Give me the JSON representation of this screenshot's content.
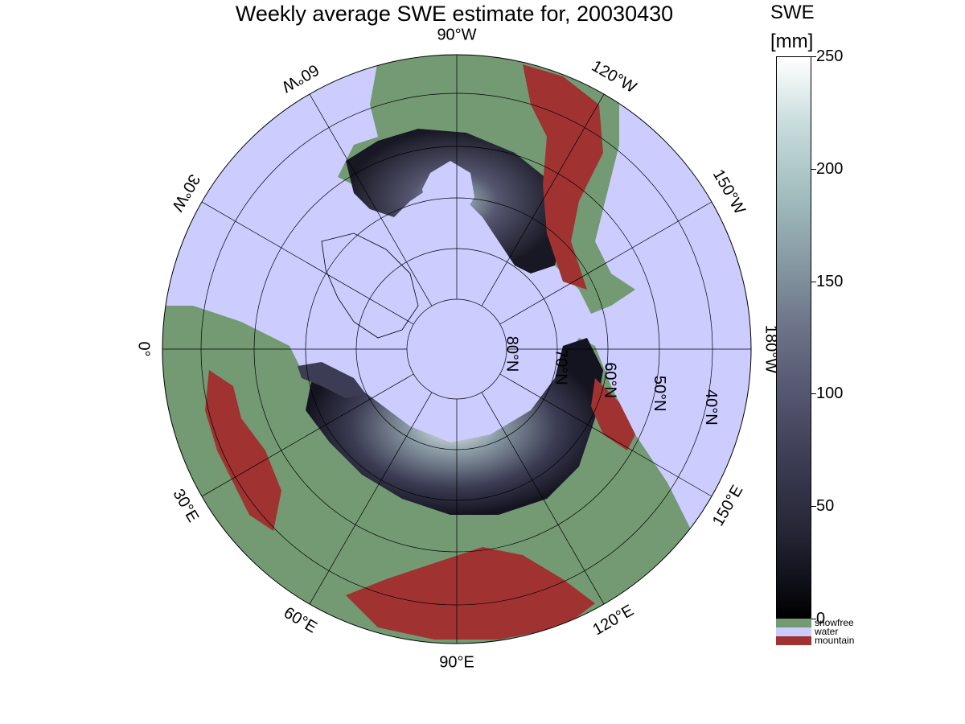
{
  "title": "Weekly average SWE estimate for, 20030430",
  "colorbar": {
    "title": "SWE",
    "unit": "[mm]",
    "ticks": [
      "0",
      "50",
      "100",
      "150",
      "200",
      "250"
    ],
    "min": 0,
    "max": 250
  },
  "legend": [
    {
      "label": "snowfree",
      "color": "#739a72"
    },
    {
      "label": "water",
      "color": "#ccccff"
    },
    {
      "label": "mountain",
      "color": "#a03232"
    }
  ],
  "map": {
    "projection": "north-polar-stereographic",
    "land_color": "#739a72",
    "water_color": "#ccccff",
    "mountain_color": "#a03232",
    "longitude_labels": [
      "90°W",
      "120°W",
      "150°W",
      "180°W",
      "150°E",
      "120°E",
      "90°E",
      "60°E",
      "30°E",
      "0°",
      "30°W",
      "60°W"
    ],
    "latitude_labels": [
      "80°N",
      "70°N",
      "60°N",
      "50°N",
      "40°N"
    ]
  }
}
